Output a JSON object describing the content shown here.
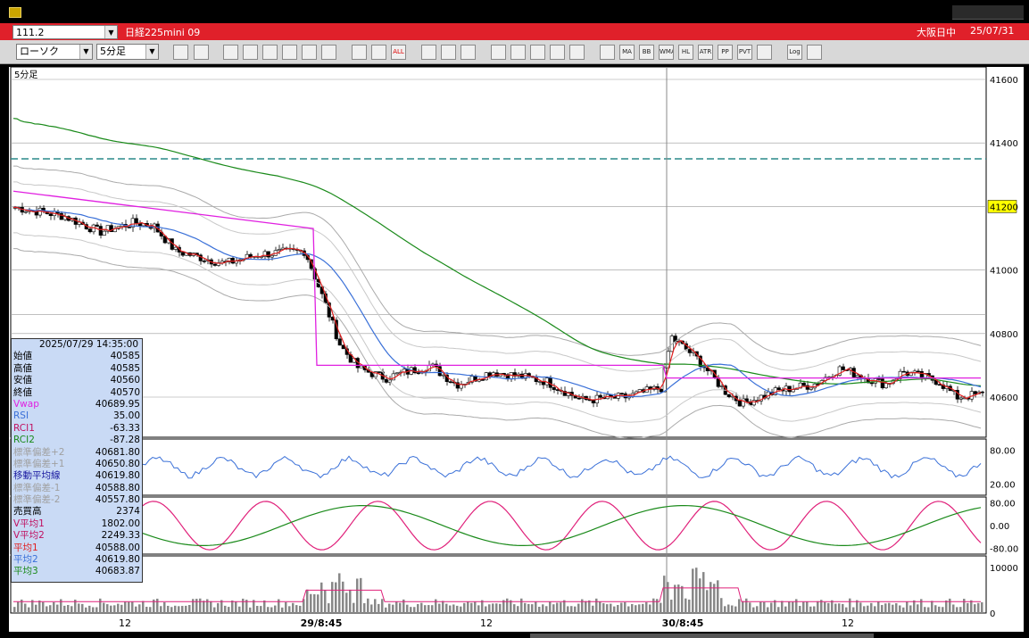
{
  "window": {
    "icon": "app-icon"
  },
  "header": {
    "symbol_code": "111.2",
    "instrument": "日経225mini 09",
    "session": "大阪日中",
    "date": "25/07/31"
  },
  "toolbar": {
    "chart_type": "ローソク",
    "timeframe": "5分足",
    "icons": [
      "zoom-icon",
      "window-icon",
      "draw-line-icon",
      "pen-icon",
      "cursor-icon",
      "undo-icon",
      "note-icon",
      "trash-icon",
      "plus-bar-icon",
      "minus-bar-icon",
      "all-icon",
      "settings-icon",
      "tools-icon",
      "compare-icon",
      "download-icon",
      "search-chart-icon",
      "chart-icon",
      "arrow-icon",
      "blank-icon",
      "sma-icon",
      "ma-icon",
      "bb-icon",
      "wma-icon",
      "hl-icon",
      "atr-icon",
      "pp-icon",
      "pvt-icon",
      "frame-icon",
      "log-icon",
      "export-icon"
    ],
    "labels": [
      "",
      "",
      "",
      "",
      "",
      "",
      "",
      "",
      "",
      "",
      "ALL",
      "",
      "",
      "",
      "",
      "",
      "",
      "",
      "",
      "",
      "MA",
      "BB",
      "WMA",
      "HL",
      "ATR",
      "PP",
      "PVT",
      "",
      "Log",
      ""
    ]
  },
  "chart": {
    "panel_label": "5分足",
    "price_ticks": [
      "41600",
      "41400",
      "41200",
      "41000",
      "40800",
      "40600"
    ],
    "current_price_label": "41200",
    "rsi_ticks": [
      "80.00",
      "20.00"
    ],
    "rci_ticks": [
      "80.00",
      "0.00",
      "-80.00"
    ],
    "volume_ticks": [
      "10000",
      "0"
    ],
    "x_ticks": [
      "12",
      "29/8:45",
      "12",
      "30/8:45",
      "12"
    ],
    "colors": {
      "candle": "#000000",
      "ma_short": "#e02020",
      "ma_mid": "#3a70d8",
      "ma_long": "#1a8a1a",
      "vwap": "#e020e0",
      "bands": "#aaaaaa",
      "dashed_line": "#2a8a8a",
      "rsi": "#3a70d8",
      "rci1": "#e0207a",
      "rci2": "#1a8a1a",
      "volume": "#888888"
    }
  },
  "info": {
    "datetime": "2025/07/29  14:35:00",
    "rows": [
      {
        "label": "始値",
        "value": "40585",
        "color": "#000000"
      },
      {
        "label": "高値",
        "value": "40585",
        "color": "#000000"
      },
      {
        "label": "安値",
        "value": "40560",
        "color": "#000000"
      },
      {
        "label": "終値",
        "value": "40570",
        "color": "#000000"
      },
      {
        "label": "Vwap",
        "value": "40689.95",
        "color": "#e020e0"
      },
      {
        "label": "RSI",
        "value": "35.00",
        "color": "#3a70d8"
      },
      {
        "label": "RCI1",
        "value": "-63.33",
        "color": "#c01060"
      },
      {
        "label": "RCI2",
        "value": "-87.28",
        "color": "#1a8a1a"
      },
      {
        "label": "標準偏差+2",
        "value": "40681.80",
        "color": "#a0a0a0"
      },
      {
        "label": "標準偏差+1",
        "value": "40650.80",
        "color": "#a0a0a0"
      },
      {
        "label": "移動平均線",
        "value": "40619.80",
        "color": "#1a1aa0"
      },
      {
        "label": "標準偏差-1",
        "value": "40588.80",
        "color": "#a0a0a0"
      },
      {
        "label": "標準偏差-2",
        "value": "40557.80",
        "color": "#a0a0a0"
      },
      {
        "label": "売買高",
        "value": "2374",
        "color": "#000000"
      },
      {
        "label": "V平均1",
        "value": "1802.00",
        "color": "#c01060"
      },
      {
        "label": "V平均2",
        "value": "2249.33",
        "color": "#c01060"
      },
      {
        "label": "平均1",
        "value": "40588.00",
        "color": "#e02020"
      },
      {
        "label": "平均2",
        "value": "40619.80",
        "color": "#3a70d8"
      },
      {
        "label": "平均3",
        "value": "40683.87",
        "color": "#1a8a1a"
      }
    ]
  }
}
